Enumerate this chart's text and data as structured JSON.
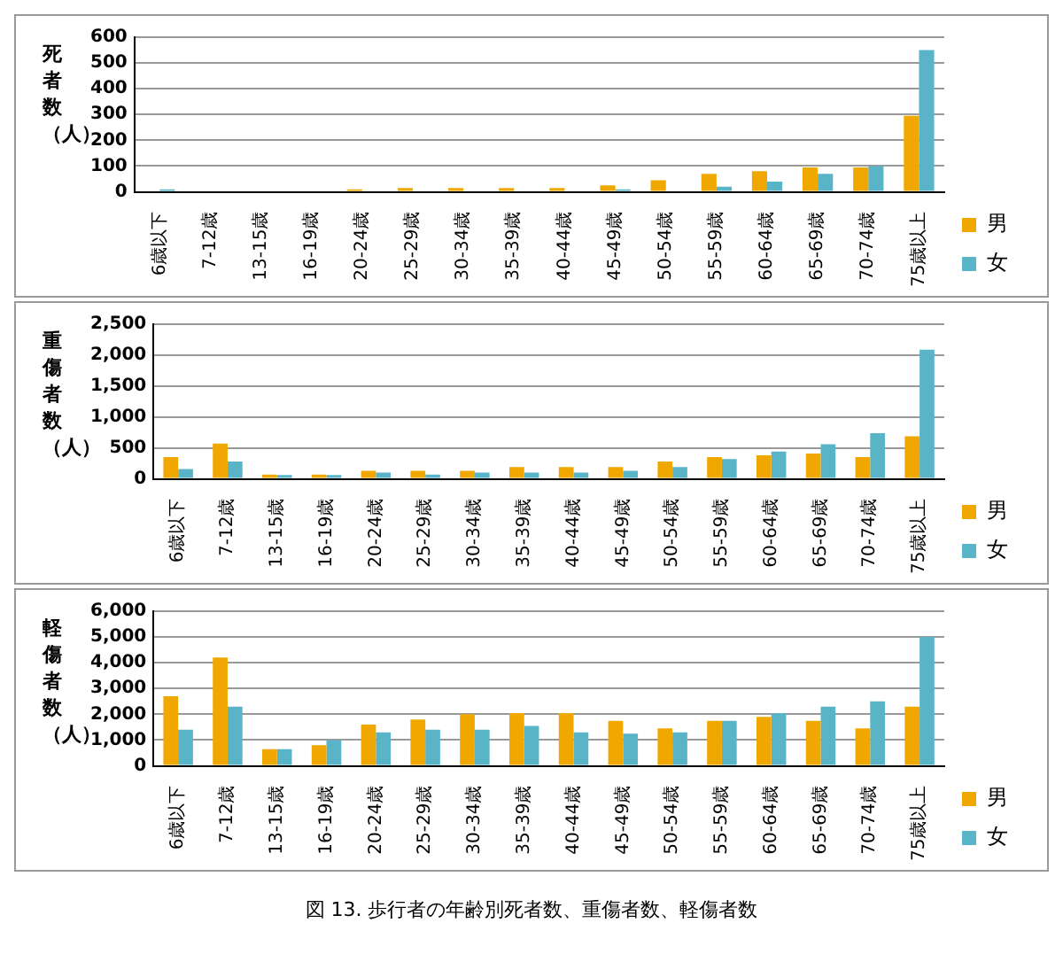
{
  "chart_data": [
    {
      "type": "bar",
      "ylabel": "死者数（人）",
      "categories": [
        "6歳以下",
        "7-12歳",
        "13-15歳",
        "16-19歳",
        "20-24歳",
        "25-29歳",
        "30-34歳",
        "35-39歳",
        "40-44歳",
        "45-49歳",
        "50-54歳",
        "55-59歳",
        "60-64歳",
        "65-69歳",
        "70-74歳",
        "75歳以上"
      ],
      "ylim": [
        0,
        600
      ],
      "yticks": [
        0,
        100,
        200,
        300,
        400,
        500,
        600
      ],
      "grid": "y",
      "legend": "right",
      "series": [
        {
          "name": "男",
          "color": "#f0a800",
          "values": [
            null,
            null,
            null,
            null,
            10,
            15,
            15,
            15,
            15,
            25,
            45,
            70,
            80,
            95,
            95,
            295
          ]
        },
        {
          "name": "女",
          "color": "#5ab4c8",
          "values": [
            10,
            null,
            null,
            null,
            null,
            null,
            null,
            null,
            null,
            10,
            null,
            20,
            40,
            70,
            100,
            550
          ]
        }
      ]
    },
    {
      "type": "bar",
      "ylabel": "重傷者数（人）",
      "categories": [
        "6歳以下",
        "7-12歳",
        "13-15歳",
        "16-19歳",
        "20-24歳",
        "25-29歳",
        "30-34歳",
        "35-39歳",
        "40-44歳",
        "45-49歳",
        "50-54歳",
        "55-59歳",
        "60-64歳",
        "65-69歳",
        "70-74歳",
        "75歳以上"
      ],
      "ylim": [
        0,
        2500
      ],
      "yticks": [
        {
          "value": 0,
          "label": "0"
        },
        {
          "value": 500,
          "label": "500"
        },
        {
          "value": 1000,
          "label": "1,000"
        },
        {
          "value": 1500,
          "label": "1,500"
        },
        {
          "value": 2000,
          "label": "2,000"
        },
        {
          "value": 2500,
          "label": "2,500"
        }
      ],
      "grid": "y",
      "legend": "right",
      "series": [
        {
          "name": "男",
          "color": "#f0a800",
          "values": [
            350,
            570,
            70,
            70,
            130,
            130,
            130,
            190,
            190,
            190,
            280,
            350,
            380,
            410,
            350,
            690
          ]
        },
        {
          "name": "女",
          "color": "#5ab4c8",
          "values": [
            160,
            280,
            60,
            60,
            100,
            70,
            100,
            100,
            100,
            130,
            190,
            320,
            440,
            560,
            740,
            2090
          ]
        }
      ]
    },
    {
      "type": "bar",
      "ylabel": "軽傷者数（人）",
      "categories": [
        "6歳以下",
        "7-12歳",
        "13-15歳",
        "16-19歳",
        "20-24歳",
        "25-29歳",
        "30-34歳",
        "35-39歳",
        "40-44歳",
        "45-49歳",
        "50-54歳",
        "55-59歳",
        "60-64歳",
        "65-69歳",
        "70-74歳",
        "75歳以上"
      ],
      "ylim": [
        0,
        6000
      ],
      "yticks": [
        {
          "value": 0,
          "label": "0"
        },
        {
          "value": 1000,
          "label": "1,000"
        },
        {
          "value": 2000,
          "label": "2,000"
        },
        {
          "value": 3000,
          "label": "3,000"
        },
        {
          "value": 4000,
          "label": "4,000"
        },
        {
          "value": 5000,
          "label": "5,000"
        },
        {
          "value": 6000,
          "label": "6,000"
        }
      ],
      "grid": "y",
      "legend": "right",
      "annotations": [
        "図 13. 歩行者の年齢別死者数、重傷者数、軽傷者数"
      ],
      "series": [
        {
          "name": "男",
          "color": "#f0a800",
          "values": [
            2700,
            4200,
            650,
            800,
            1600,
            1800,
            2000,
            2050,
            2050,
            1750,
            1450,
            1750,
            1900,
            1750,
            1450,
            2300
          ]
        },
        {
          "name": "女",
          "color": "#5ab4c8",
          "values": [
            1400,
            2300,
            650,
            1000,
            1300,
            1400,
            1400,
            1550,
            1300,
            1250,
            1300,
            1750,
            2050,
            2300,
            2500,
            5000
          ]
        }
      ]
    }
  ]
}
